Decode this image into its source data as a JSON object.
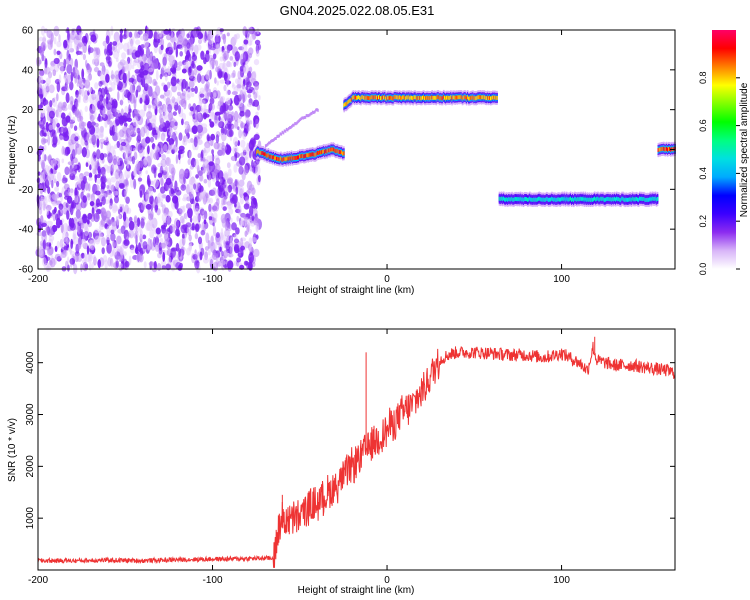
{
  "title": "GN04.2025.022.08.05.E31",
  "chart_data": [
    {
      "type": "heatmap",
      "xlabel": "Height of straight line (km)",
      "ylabel": "Frequency (Hz)",
      "xlim": [
        -200,
        165
      ],
      "ylim": [
        -60,
        60
      ],
      "xticks": [
        -200,
        -100,
        0,
        100
      ],
      "yticks": [
        -60,
        -40,
        -20,
        0,
        20,
        40,
        60
      ],
      "colorbar": {
        "label": "Normalized spectral amplitude",
        "range": [
          0,
          1
        ],
        "ticks": [
          "0.0",
          "0.2",
          "0.4",
          "0.6",
          "0.8"
        ],
        "colors": [
          "#ffffff",
          "#d8b4f8",
          "#8c2cf0",
          "#3b00ff",
          "#0000ff",
          "#00aaff",
          "#00e0e0",
          "#00ff80",
          "#00ff00",
          "#80ff00",
          "#ffff00",
          "#ff8000",
          "#ff0000",
          "#ff0066"
        ]
      },
      "noise_region": {
        "x": [
          -200,
          -73
        ],
        "y": [
          -60,
          60
        ],
        "amplitude": [
          0.05,
          0.2
        ]
      },
      "tracks": [
        {
          "x": [
            -75,
            -62,
            -52,
            -40,
            -32,
            -25
          ],
          "y": [
            -1,
            -5,
            -4,
            -2,
            0,
            -2
          ],
          "peak": 0.95
        },
        {
          "x": [
            -25,
            -20,
            -15,
            0,
            20,
            40,
            63
          ],
          "y": [
            22,
            26,
            26,
            26,
            26,
            26,
            26
          ],
          "peak": 0.9
        },
        {
          "x": [
            64,
            90,
            155
          ],
          "y": [
            -25,
            -25,
            -25
          ],
          "peak": 0.5
        },
        {
          "x": [
            155,
            165
          ],
          "y": [
            0,
            0
          ],
          "peak": 0.95
        },
        {
          "x": [
            -70,
            -50,
            -40
          ],
          "y": [
            2,
            15,
            20
          ],
          "peak": 0.1
        }
      ]
    },
    {
      "type": "line",
      "xlabel": "Height of straight line (km)",
      "ylabel": "SNR (10 * v/v)",
      "xlim": [
        -200,
        165
      ],
      "ylim": [
        0,
        4650
      ],
      "xticks": [
        -200,
        -100,
        0,
        100
      ],
      "yticks": [
        1000,
        2000,
        3000,
        4000
      ],
      "series": [
        {
          "color": "#ee3333",
          "x": [
            -200,
            -180,
            -160,
            -140,
            -120,
            -100,
            -80,
            -65,
            -62,
            -60,
            -55,
            -50,
            -45,
            -40,
            -35,
            -30,
            -25,
            -20,
            -15,
            -10,
            -5,
            0,
            5,
            10,
            15,
            20,
            25,
            30,
            35,
            40,
            50,
            60,
            70,
            80,
            90,
            100,
            110,
            115,
            118,
            120,
            125,
            130,
            140,
            150,
            160,
            165
          ],
          "y": [
            180,
            180,
            190,
            180,
            200,
            210,
            220,
            230,
            800,
            1000,
            950,
            1050,
            1200,
            1300,
            1450,
            1600,
            1800,
            2000,
            2200,
            2400,
            2550,
            2700,
            2900,
            3050,
            3200,
            3450,
            3750,
            4050,
            4150,
            4200,
            4200,
            4180,
            4150,
            4150,
            4100,
            4180,
            4000,
            3850,
            4300,
            4050,
            4000,
            3950,
            3950,
            3900,
            3850,
            3800
          ]
        }
      ],
      "spikes": [
        {
          "x": -60,
          "y": 1450
        },
        {
          "x": -12,
          "y": 4200
        },
        {
          "x": 119,
          "y": 4500
        }
      ]
    }
  ]
}
